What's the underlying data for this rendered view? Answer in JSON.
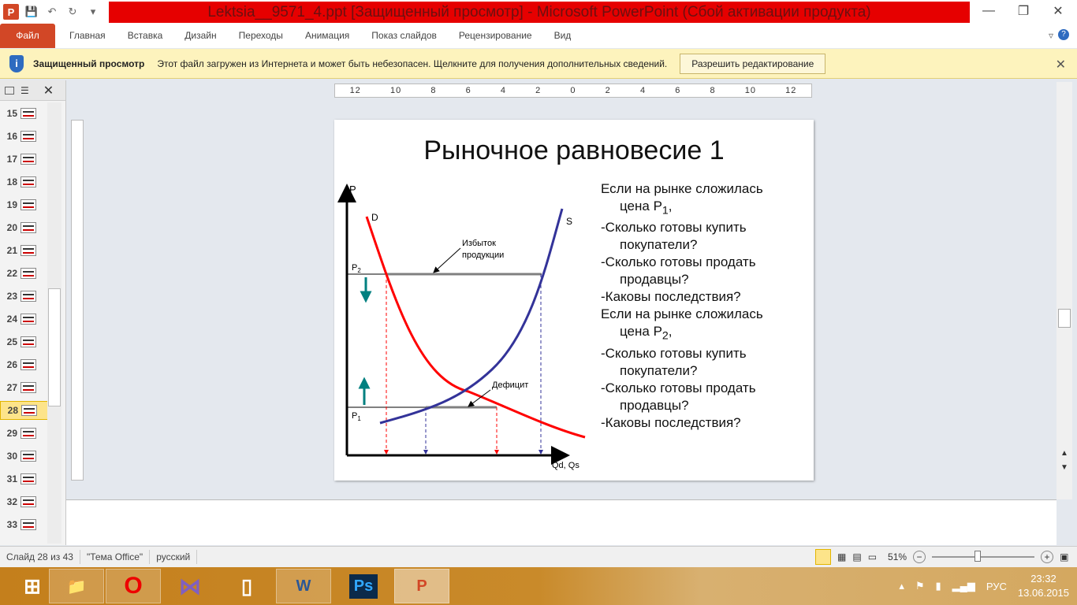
{
  "window": {
    "title": "Lektsia__9571_4.ppt [Защищенный просмотр] - Microsoft PowerPoint (Сбой активации продукта)"
  },
  "ribbon": {
    "tabs": [
      "Файл",
      "Главная",
      "Вставка",
      "Дизайн",
      "Переходы",
      "Анимация",
      "Показ слайдов",
      "Рецензирование",
      "Вид"
    ]
  },
  "infobar": {
    "title": "Защищенный просмотр",
    "message": "Этот файл загружен из Интернета и может быть небезопасен. Щелкните для получения дополнительных сведений.",
    "button": "Разрешить редактирование"
  },
  "slides": {
    "numbers": [
      "15",
      "16",
      "17",
      "18",
      "19",
      "20",
      "21",
      "22",
      "23",
      "24",
      "25",
      "26",
      "27",
      "28",
      "29",
      "30",
      "31",
      "32",
      "33"
    ],
    "selected": "28"
  },
  "ruler": {
    "labels": [
      "12",
      "10",
      "8",
      "6",
      "4",
      "2",
      "0",
      "2",
      "4",
      "6",
      "8",
      "10",
      "12"
    ]
  },
  "slide": {
    "title": "Рыночное равновесие 1",
    "bullets": [
      {
        "text": "Если на рынке сложилась",
        "cont": "цена P",
        "sub": "1",
        "tail": ","
      },
      {
        "text": "-Сколько готовы купить",
        "cont": "покупатели?"
      },
      {
        "text": "-Сколько готовы продать",
        "cont": "продавцы?"
      },
      {
        "text": "-Каковы последствия?"
      },
      {
        "text": "Если на рынке сложилась",
        "cont": "цена P",
        "sub": "2",
        "tail": ","
      },
      {
        "text": "-Сколько готовы купить",
        "cont": "покупатели?"
      },
      {
        "text": "-Сколько готовы продать",
        "cont": "продавцы?"
      },
      {
        "text": "-Каковы последствия?"
      }
    ],
    "diagram": {
      "y_axis": "P",
      "x_axis": "Qd, Qs",
      "demand": "D",
      "supply": "S",
      "p2": "P2",
      "p1": "P1",
      "surplus": "Избыток продукции",
      "surplus_l1": "Избыток",
      "surplus_l2": "продукции",
      "deficit": "Дефицит",
      "demand_color": "#ff0000",
      "supply_color": "#333399",
      "arrow_color": "#008080"
    }
  },
  "status": {
    "slide": "Слайд 28 из 43",
    "theme": "\"Тема Office\"",
    "language": "русский",
    "zoom": "51%",
    "zoom_percent": 51
  },
  "taskbar": {
    "lang": "РУС",
    "time": "23:32",
    "date": "13.06.2015"
  }
}
